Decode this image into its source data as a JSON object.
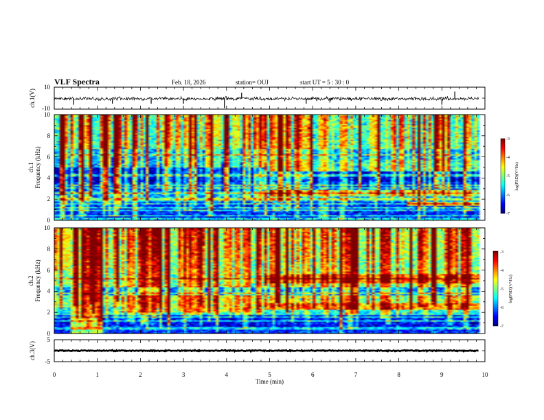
{
  "header": {
    "title": "VLF Spectra",
    "date": "Feb. 18, 2026",
    "station": "station= OUJ",
    "start_ut": "start  UT =   5  : 30 : 0"
  },
  "chart_data": {
    "type": "heatmap",
    "x_axis": {
      "label": "Time  (min)",
      "range": [
        0,
        10
      ],
      "ticks": [
        "0",
        "1",
        "2",
        "3",
        "4",
        "5",
        "6",
        "7",
        "8",
        "9",
        "10"
      ],
      "minor_step": 0.2
    },
    "panels": [
      {
        "id": "ch1-waveform",
        "type": "line",
        "ylabel": "ch.1(V)",
        "ylim": [
          -10,
          10
        ],
        "yticks": [
          "10",
          "-10"
        ],
        "baseline_v": -0.5,
        "noise_amplitude_v": 2.5,
        "spikes": [
          {
            "t": 0.45,
            "v": -6
          },
          {
            "t": 1.35,
            "v": -5
          },
          {
            "t": 2.25,
            "v": -5
          },
          {
            "t": 3.0,
            "v": -5
          },
          {
            "t": 3.95,
            "v": -9
          },
          {
            "t": 4.35,
            "v": 5
          },
          {
            "t": 5.85,
            "v": -5
          },
          {
            "t": 9.0,
            "v": -6
          },
          {
            "t": 9.3,
            "v": 6
          },
          {
            "t": 6.4,
            "v": -4
          }
        ]
      },
      {
        "id": "ch1-spectrogram",
        "type": "heatmap",
        "ylabel_line1": "ch.1",
        "ylabel_line2": "Frequency  (kHz)",
        "ylim_khz": [
          0,
          10
        ],
        "yticks": [
          "0",
          "2",
          "4",
          "6",
          "8",
          "10"
        ],
        "data_xmax_min": 9.85,
        "colorbar": {
          "label": "log(PSD)(V²/Hz)",
          "range": [
            -7,
            -3
          ],
          "ticks": [
            "-3",
            "-4",
            "-5",
            "-6",
            "-7"
          ],
          "colormap": "jet"
        },
        "grid_step_min": 0.0625,
        "grid_step_khz": 0.125,
        "background": [
          {
            "f_lo": 0.0,
            "f_hi": 0.3,
            "level": -5.6
          },
          {
            "f_lo": 0.3,
            "f_hi": 1.8,
            "level": -6.4
          },
          {
            "f_lo": 1.8,
            "f_hi": 2.8,
            "level": -5.9
          },
          {
            "f_lo": 2.8,
            "f_hi": 3.6,
            "level": -6.5
          },
          {
            "f_lo": 3.6,
            "f_hi": 5.0,
            "level": -6.8
          },
          {
            "f_lo": 5.0,
            "f_hi": 6.8,
            "level": -5.9
          },
          {
            "f_lo": 6.8,
            "f_hi": 10.0,
            "level": -5.3
          }
        ],
        "bands": [
          {
            "t_start": 4.9,
            "t_end": 9.85,
            "f_lo": 2.3,
            "f_hi": 2.9,
            "level": -4.9
          },
          {
            "t_start": 4.9,
            "t_end": 9.85,
            "f_lo": 4.6,
            "f_hi": 5.8,
            "level": -5.4
          },
          {
            "t_start": 8.2,
            "t_end": 9.85,
            "f_lo": 1.4,
            "f_hi": 1.8,
            "level": -4.6
          }
        ],
        "noise_db": 0.45,
        "vertical_bursts_per_min": 13,
        "horizontal_lines_khz": [
          0.45,
          0.95,
          1.2,
          1.55,
          2.0,
          2.55,
          3.05,
          3.3,
          4.15,
          4.35,
          6.2
        ]
      },
      {
        "id": "ch2-spectrogram",
        "type": "heatmap",
        "ylabel_line1": "ch.2",
        "ylabel_line2": "Frequency  (kHz)",
        "ylim_khz": [
          0,
          10
        ],
        "yticks": [
          "0",
          "2",
          "4",
          "6",
          "8",
          "10"
        ],
        "data_xmax_min": 9.85,
        "colorbar": {
          "label": "log(PSD)(V²/Hz)",
          "range": [
            -7,
            -3
          ],
          "ticks": [
            "-3",
            "-4",
            "-5",
            "-6",
            "-7"
          ],
          "colormap": "jet"
        },
        "grid_step_min": 0.0625,
        "grid_step_khz": 0.125,
        "background": [
          {
            "f_lo": 0.0,
            "f_hi": 0.4,
            "level": -6.3
          },
          {
            "f_lo": 0.4,
            "f_hi": 1.8,
            "level": -6.5
          },
          {
            "f_lo": 1.8,
            "f_hi": 2.5,
            "level": -5.5
          },
          {
            "f_lo": 2.5,
            "f_hi": 3.6,
            "level": -5.0
          },
          {
            "f_lo": 3.6,
            "f_hi": 4.4,
            "level": -6.0
          },
          {
            "f_lo": 4.4,
            "f_hi": 7.0,
            "level": -5.1
          },
          {
            "f_lo": 7.0,
            "f_hi": 10.0,
            "level": -4.9
          }
        ],
        "bands": [
          {
            "t_start": 0.4,
            "t_end": 1.15,
            "f_lo": 0.0,
            "f_hi": 10.0,
            "level": -4.8
          },
          {
            "t_start": 0.0,
            "t_end": 0.4,
            "f_lo": 6.0,
            "f_hi": 10.0,
            "level": -4.5
          },
          {
            "t_start": 1.55,
            "t_end": 4.9,
            "f_lo": 2.0,
            "f_hi": 3.6,
            "level": -4.8
          },
          {
            "t_start": 4.9,
            "t_end": 9.85,
            "f_lo": 2.3,
            "f_hi": 2.9,
            "level": -4.2
          },
          {
            "t_start": 4.9,
            "t_end": 9.85,
            "f_lo": 4.8,
            "f_hi": 5.6,
            "level": -4.1
          }
        ],
        "noise_db": 0.45,
        "vertical_bursts_per_min": 13,
        "horizontal_lines_khz": [
          0.5,
          1.2,
          1.6,
          3.8,
          5.2
        ]
      },
      {
        "id": "ch3-waveform",
        "type": "line",
        "ylabel": "ch.3(V)",
        "ylim": [
          -5,
          5
        ],
        "yticks": [
          "5",
          "-5"
        ],
        "baseline_v": 0.0,
        "noise_amplitude_v": 0.35
      }
    ]
  }
}
